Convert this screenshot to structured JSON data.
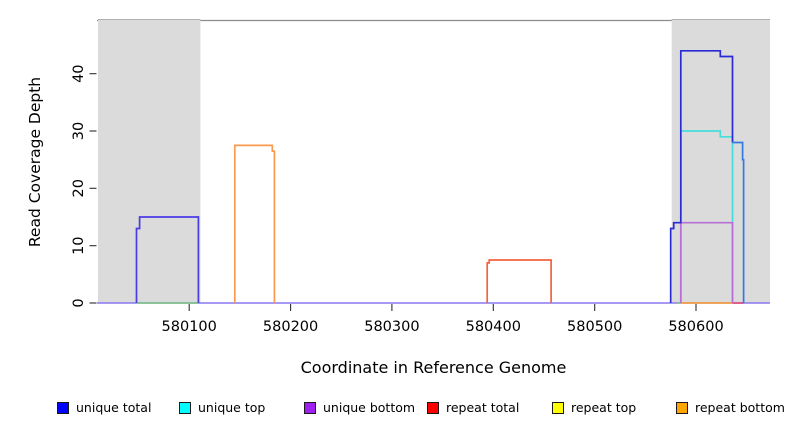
{
  "chart_data": {
    "type": "line",
    "subtype": "step-coverage",
    "title": "",
    "xlabel": "Coordinate in Reference Genome",
    "ylabel": "Read Coverage Depth",
    "xlim": [
      580009,
      580673
    ],
    "ylim": [
      0,
      49
    ],
    "xticks": [
      580100,
      580200,
      580300,
      580400,
      580500,
      580600
    ],
    "yticks": [
      0,
      10,
      20,
      30,
      40
    ],
    "grid": false,
    "legend_position": "bottom",
    "highlight_regions": [
      {
        "name": "gray-band-left",
        "from": 580010,
        "to": 580111,
        "color": "#DBDBDB"
      },
      {
        "name": "gray-band-right",
        "from": 580576,
        "to": 580673,
        "color": "#DBDBDB"
      }
    ],
    "baseline_segments": [
      {
        "name": "baseline-axis",
        "from": 580009,
        "to": 580673,
        "color": "#8878F0"
      },
      {
        "name": "baseline-green-left",
        "from": 580048,
        "to": 580109,
        "color": "#7CC87C"
      },
      {
        "name": "baseline-green-right",
        "from": 580581,
        "to": 580585,
        "color": "#7CC87C"
      },
      {
        "name": "baseline-orange-right",
        "from": 580585,
        "to": 580636,
        "color": "#FF9E2C"
      },
      {
        "name": "baseline-crimson-right",
        "from": 580636,
        "to": 580647,
        "color": "#E8487A"
      }
    ],
    "series": [
      {
        "name": "unique top (right block)",
        "color": "#45DCDC",
        "points": [
          [
            580585,
            0
          ],
          [
            580585,
            30
          ],
          [
            580624,
            30
          ],
          [
            580624,
            29
          ],
          [
            580636,
            29
          ],
          [
            580636,
            0
          ]
        ]
      },
      {
        "name": "unique bottom (right block)",
        "color": "#B76FD6",
        "points": [
          [
            580585,
            0
          ],
          [
            580585,
            14
          ],
          [
            580636,
            14
          ],
          [
            580636,
            0
          ]
        ]
      },
      {
        "name": "repeat coverage mid block",
        "color": "#F4633C",
        "points": [
          [
            580394,
            0
          ],
          [
            580394,
            7
          ],
          [
            580396,
            7
          ],
          [
            580396,
            7.5
          ],
          [
            580457,
            7.5
          ],
          [
            580457,
            0
          ]
        ]
      },
      {
        "name": "repeat bottom (left block)",
        "color": "#FB9A4D",
        "points": [
          [
            580145,
            0
          ],
          [
            580145,
            27.5
          ],
          [
            580182,
            27.5
          ],
          [
            580182,
            26.5
          ],
          [
            580184,
            26.5
          ],
          [
            580184,
            0
          ]
        ]
      },
      {
        "name": "unique total (left block)",
        "color": "#4A3BE8",
        "points": [
          [
            580048,
            0
          ],
          [
            580048,
            13
          ],
          [
            580051,
            13
          ],
          [
            580051,
            15
          ],
          [
            580109,
            15
          ],
          [
            580109,
            0
          ]
        ]
      },
      {
        "name": "unique total (right block)",
        "color": "#2B2BD5",
        "points": [
          [
            580575,
            0
          ],
          [
            580575,
            13
          ],
          [
            580578,
            13
          ],
          [
            580578,
            14
          ],
          [
            580585,
            14
          ],
          [
            580585,
            44
          ],
          [
            580624,
            44
          ],
          [
            580624,
            43
          ],
          [
            580636,
            43
          ],
          [
            580636,
            28
          ]
        ]
      },
      {
        "name": "unique total (right tail)",
        "color": "#2F7BE0",
        "points": [
          [
            580636,
            28
          ],
          [
            580646,
            28
          ],
          [
            580646,
            25
          ],
          [
            580647,
            25
          ],
          [
            580647,
            0
          ]
        ]
      }
    ],
    "legend": [
      {
        "label": "unique total",
        "color": "#0000FF"
      },
      {
        "label": "unique top",
        "color": "#00FFFF"
      },
      {
        "label": "unique bottom",
        "color": "#A020F0"
      },
      {
        "label": "repeat total",
        "color": "#FF0000"
      },
      {
        "label": "repeat top",
        "color": "#FFFF00"
      },
      {
        "label": "repeat bottom",
        "color": "#FFA500"
      }
    ]
  }
}
